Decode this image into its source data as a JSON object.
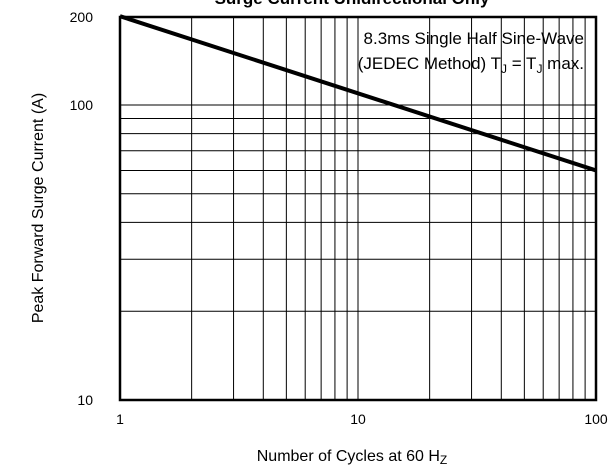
{
  "chart_data": {
    "type": "line",
    "title": "Surge Current Unidirectional Only",
    "xlabel": "Number of Cycles at 60 H",
    "xlabel_sub": "Z",
    "ylabel": "Peak Forward Surge Current (A)",
    "x_scale": "log",
    "y_scale": "log",
    "xlim": [
      1,
      100
    ],
    "ylim": [
      10,
      200
    ],
    "grid": true,
    "x_ticks": [
      {
        "value": 1,
        "label": "1"
      },
      {
        "value": 10,
        "label": "10"
      },
      {
        "value": 100,
        "label": "100"
      }
    ],
    "y_ticks": [
      {
        "value": 10,
        "label": "10"
      },
      {
        "value": 100,
        "label": "100"
      },
      {
        "value": 200,
        "label": "200"
      }
    ],
    "x_grid": [
      2,
      3,
      4,
      5,
      6,
      7,
      8,
      9,
      10,
      20,
      30,
      40,
      50,
      60,
      70,
      80,
      90
    ],
    "y_grid": [
      20,
      30,
      40,
      50,
      60,
      70,
      80,
      90,
      100
    ],
    "series": [
      {
        "x": [
          1,
          100
        ],
        "y": [
          200,
          60
        ]
      }
    ],
    "annotation": {
      "line1": "8.3ms Single Half Sine-Wave",
      "line2_a": "(JEDEC Method) T",
      "line2_sub1": "J",
      "line2_b": " = T",
      "line2_sub2": "J",
      "line2_c": " max."
    }
  }
}
